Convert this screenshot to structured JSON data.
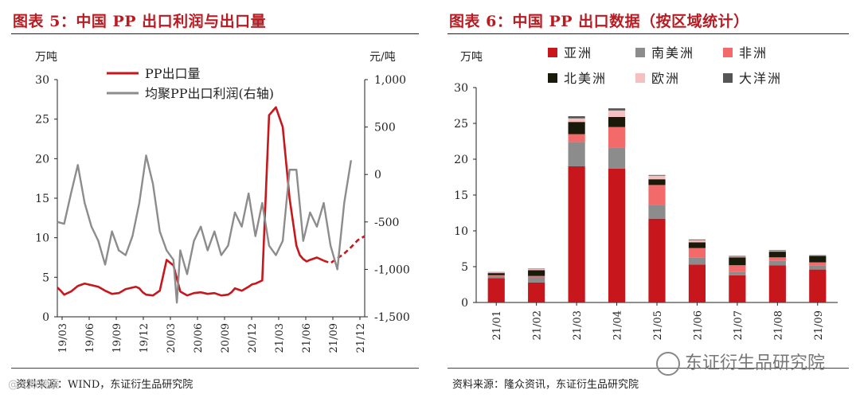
{
  "left": {
    "title": "图表 5：中国 PP 出口利润与出口量",
    "source": "资料来源：WIND，东证衍生品研究院",
    "chart_data": {
      "type": "line",
      "title": "中国 PP 出口利润与出口量",
      "left_unit": "万吨",
      "right_unit": "元/吨",
      "left_ylim": [
        0,
        30
      ],
      "left_ticks": [
        "0",
        "5",
        "10",
        "15",
        "20",
        "25",
        "30"
      ],
      "right_ylim": [
        -1500,
        1000
      ],
      "right_ticks": [
        "-1,500",
        "-1,000",
        "-500",
        "0",
        "500",
        "1,000"
      ],
      "x_ticks": [
        "19/03",
        "19/06",
        "19/09",
        "19/12",
        "20/03",
        "20/06",
        "20/09",
        "20/12",
        "21/03",
        "21/06",
        "21/09",
        "21/12"
      ],
      "series": [
        {
          "name": "PP出口量",
          "color": "#c8161d",
          "axis": "left",
          "x": [
            0,
            0.5,
            1,
            2,
            3,
            4,
            5,
            6,
            7,
            8,
            9,
            10,
            11,
            11.5,
            12,
            12.5,
            13,
            14,
            15,
            16,
            17,
            18,
            19,
            20,
            21,
            22,
            23,
            24,
            25,
            25.5,
            26,
            27,
            28,
            28.5,
            29,
            30,
            31,
            32,
            33,
            34,
            35,
            35.5,
            36,
            36.5,
            37,
            38,
            39,
            40,
            41,
            42,
            43,
            44,
            45
          ],
          "y": [
            3.7,
            3.3,
            2.8,
            3.2,
            3.9,
            4.2,
            4.0,
            3.8,
            3.3,
            2.9,
            3.0,
            3.5,
            3.7,
            3.8,
            3.6,
            3.1,
            2.8,
            2.7,
            3.3,
            7.2,
            6.5,
            3.2,
            2.7,
            3.0,
            3.1,
            2.9,
            3.0,
            2.7,
            2.8,
            3.1,
            3.6,
            3.3,
            3.8,
            4.1,
            4.2,
            4.6,
            25.5,
            26.5,
            24.0,
            15.0,
            9.0,
            7.8,
            7.3,
            7.0,
            7.2,
            7.5,
            7.1,
            6.8,
            7.4,
            8.0,
            8.8,
            9.7,
            10.2
          ],
          "projected_from_index": 46
        },
        {
          "name": "均聚PP出口利润(右轴)",
          "color": "#8c8c8c",
          "axis": "right",
          "x": [
            0,
            1,
            2,
            3,
            4,
            5,
            6,
            7,
            8,
            9,
            10,
            11,
            12,
            13,
            14,
            15,
            16,
            17,
            17.5,
            18,
            19,
            20,
            21,
            22,
            23,
            24,
            25,
            26,
            27,
            28,
            29,
            30,
            31,
            32,
            33,
            34,
            35,
            36,
            37,
            38,
            39,
            40,
            41,
            42,
            43
          ],
          "y": [
            -500,
            -520,
            -200,
            100,
            -300,
            -550,
            -700,
            -950,
            -600,
            -800,
            -850,
            -650,
            -300,
            200,
            -100,
            -600,
            -800,
            -900,
            -1350,
            -800,
            -1050,
            -700,
            -550,
            -800,
            -600,
            -850,
            -750,
            -400,
            -550,
            -200,
            -650,
            -300,
            -750,
            -850,
            -700,
            50,
            50,
            -700,
            -400,
            -550,
            -300,
            -750,
            -1000,
            -300,
            150
          ],
          "projected_from_index": -1
        }
      ],
      "legend": [
        "PP出口量",
        "均聚PP出口利润(右轴)"
      ],
      "legend_position": "top-left"
    }
  },
  "right": {
    "title": "图表 6：中国 PP 出口数据（按区域统计）",
    "source": "资料来源：隆众资讯，东证衍生品研究院",
    "chart_data": {
      "type": "bar",
      "stacked": true,
      "title": "中国 PP 出口数据（按区域统计）",
      "unit": "万吨",
      "ylim": [
        0,
        30
      ],
      "y_ticks": [
        "0",
        "5",
        "10",
        "15",
        "20",
        "25",
        "30"
      ],
      "categories": [
        "21/01",
        "21/02",
        "21/03",
        "21/04",
        "21/05",
        "21/06",
        "21/07",
        "21/08",
        "21/09"
      ],
      "series": [
        {
          "name": "亚洲",
          "color": "#c8161d",
          "values": [
            3.4,
            2.8,
            19.0,
            18.7,
            11.7,
            5.3,
            3.8,
            5.2,
            4.6
          ]
        },
        {
          "name": "南美洲",
          "color": "#8c8c8c",
          "values": [
            0.3,
            0.7,
            3.4,
            2.9,
            1.9,
            1.0,
            0.5,
            0.6,
            0.6
          ]
        },
        {
          "name": "非洲",
          "color": "#f26a6a",
          "values": [
            0.1,
            0.2,
            1.1,
            2.9,
            2.8,
            1.3,
            0.9,
            0.5,
            0.4
          ]
        },
        {
          "name": "北美洲",
          "color": "#1a1a0a",
          "values": [
            0.3,
            0.8,
            1.7,
            1.4,
            0.8,
            0.8,
            1.1,
            0.8,
            0.9
          ]
        },
        {
          "name": "欧洲",
          "color": "#f7c0c0",
          "values": [
            0.1,
            0.2,
            0.5,
            0.9,
            0.5,
            0.3,
            0.1,
            0.1,
            0.05
          ]
        },
        {
          "name": "大洋洲",
          "color": "#555555",
          "values": [
            0.05,
            0.05,
            0.3,
            0.3,
            0.1,
            0.1,
            0.1,
            0.1,
            0.05
          ]
        }
      ],
      "legend_position": "top"
    }
  },
  "watermark": "东证衍生品研究院",
  "watermark_left": "@大数跨境"
}
